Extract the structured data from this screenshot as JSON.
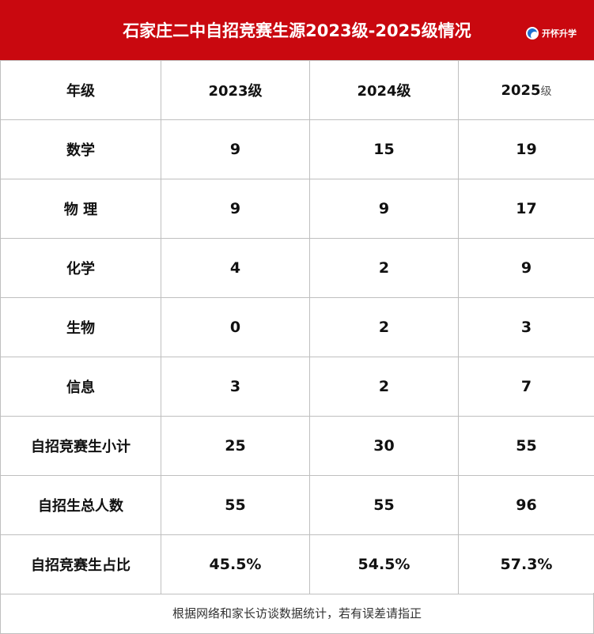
{
  "header": {
    "title": "石家庄二中自招竞赛生源2023级-2025级情况",
    "logo_text": "开怀升学",
    "bg_color": "#c9080f"
  },
  "table": {
    "columns": [
      "年级",
      "2023级",
      "2024级",
      "2025"
    ],
    "last_column_suffix": "级",
    "rows": [
      {
        "label": "数学",
        "v2023": "9",
        "v2024": "15",
        "v2025": "19"
      },
      {
        "label": "物 理",
        "v2023": "9",
        "v2024": "9",
        "v2025": "17"
      },
      {
        "label": "化学",
        "v2023": "4",
        "v2024": "2",
        "v2025": "9"
      },
      {
        "label": "生物",
        "v2023": "0",
        "v2024": "2",
        "v2025": "3"
      },
      {
        "label": "信息",
        "v2023": "3",
        "v2024": "2",
        "v2025": "7"
      },
      {
        "label": "自招竞赛生小计",
        "v2023": "25",
        "v2024": "30",
        "v2025": "55"
      },
      {
        "label": "自招生总人数",
        "v2023": "55",
        "v2024": "55",
        "v2025": "96"
      },
      {
        "label": "自招竞赛生占比",
        "v2023": "45.5%",
        "v2024": "54.5%",
        "v2025": "57.3%"
      }
    ]
  },
  "footer": {
    "note": "根据网络和家长访谈数据统计，若有误差请指正"
  }
}
